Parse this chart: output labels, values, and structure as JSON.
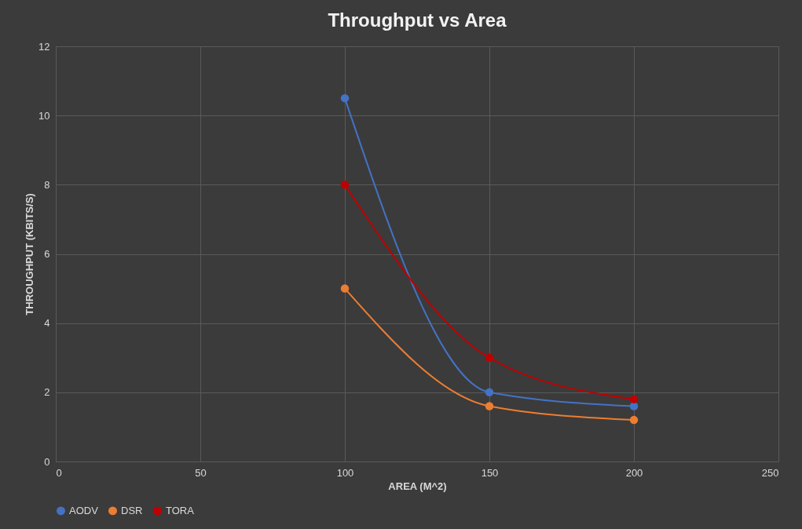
{
  "chart_data": {
    "type": "line",
    "title": "Throughput vs Area",
    "xlabel": "AREA (M^2)",
    "ylabel": "THROUGHPUT (KBITS/S)",
    "x": [
      100,
      150,
      200
    ],
    "series": [
      {
        "name": "AODV",
        "color": "#4472c4",
        "values": [
          10.5,
          2.0,
          1.6
        ]
      },
      {
        "name": "DSR",
        "color": "#ed7d31",
        "values": [
          5.0,
          1.6,
          1.2
        ]
      },
      {
        "name": "TORA",
        "color": "#c00000",
        "values": [
          8.0,
          3.0,
          1.8
        ]
      }
    ],
    "xlim": [
      0,
      250
    ],
    "xticks": [
      0,
      50,
      100,
      150,
      200,
      250
    ],
    "ylim": [
      0,
      12
    ],
    "yticks": [
      0,
      2,
      4,
      6,
      8,
      10,
      12
    ],
    "grid": true,
    "legend": "bottom",
    "marker": "circle",
    "line_style": "solid"
  }
}
